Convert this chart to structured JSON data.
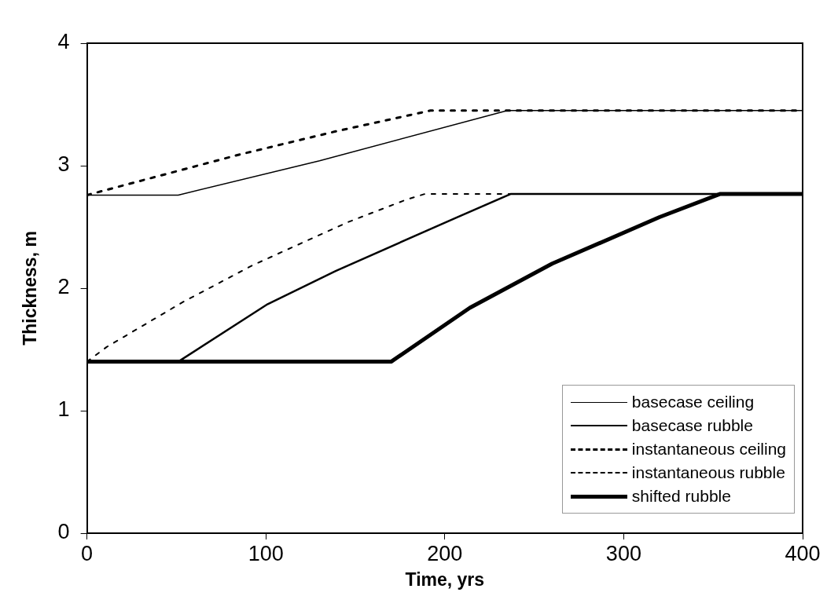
{
  "chart_data": {
    "type": "line",
    "xlabel": "Time, yrs",
    "ylabel": "Thickness, m",
    "xlim": [
      0,
      400
    ],
    "xticks": [
      0,
      100,
      200,
      300,
      400
    ],
    "ylim": [
      0,
      4
    ],
    "yticks": [
      0,
      1,
      2,
      3,
      4
    ],
    "grid": false,
    "legend": "bottom right",
    "marker": "none",
    "series": [
      {
        "name": "basecase ceiling",
        "color": "#000000",
        "line_style": "solid",
        "x": [
          0,
          51,
          130,
          235,
          400
        ],
        "values": [
          2.76,
          2.76,
          3.04,
          3.45,
          3.45
        ]
      },
      {
        "name": "basecase rubble",
        "color": "#000000",
        "line_style": "solid",
        "x": [
          0,
          51,
          101,
          139,
          207,
          237,
          400
        ],
        "values": [
          1.4,
          1.4,
          1.87,
          2.14,
          2.58,
          2.77,
          2.77
        ]
      },
      {
        "name": "instantaneous ceiling",
        "color": "#000000",
        "line_style": "dotted",
        "x": [
          0,
          85,
          139,
          192,
          400
        ],
        "values": [
          2.76,
          3.09,
          3.28,
          3.45,
          3.45
        ]
      },
      {
        "name": "instantaneous rubble",
        "color": "#000000",
        "line_style": "dotted",
        "x": [
          0,
          11,
          54,
          93,
          146,
          178,
          189,
          400
        ],
        "values": [
          1.4,
          1.52,
          1.89,
          2.19,
          2.54,
          2.72,
          2.77,
          2.77
        ]
      },
      {
        "name": "shifted rubble",
        "color": "#000000",
        "line_style": "solid",
        "x": [
          0,
          170,
          214,
          260,
          320,
          354,
          400
        ],
        "values": [
          1.4,
          1.4,
          1.84,
          2.2,
          2.58,
          2.77,
          2.77
        ]
      }
    ]
  }
}
